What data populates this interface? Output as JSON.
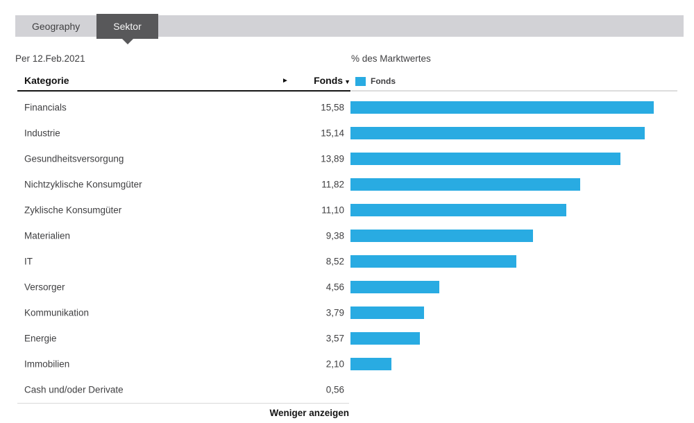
{
  "tabs": {
    "items": [
      {
        "label": "Geography",
        "active": false
      },
      {
        "label": "Sektor",
        "active": true
      }
    ]
  },
  "meta": {
    "as_of": "Per 12.Feb.2021",
    "chart_axis_label": "% des Marktwertes"
  },
  "table": {
    "category_header": "Kategorie",
    "value_header": "Fonds",
    "sort_indicator": "▼",
    "expand_arrow": "►",
    "footer_link": "Weniger anzeigen"
  },
  "legend": {
    "label": "Fonds",
    "color": "#29abe2"
  },
  "chart_data": {
    "type": "bar",
    "orientation": "horizontal",
    "title": "% des Marktwertes",
    "legend_entries": [
      "Fonds"
    ],
    "legend_position": "top",
    "grid": false,
    "categories": [
      "Financials",
      "Industrie",
      "Gesundheitsversorgung",
      "Nichtzyklische Konsumgüter",
      "Zyklische Konsumgüter",
      "Materialien",
      "IT",
      "Versorger",
      "Kommunikation",
      "Energie",
      "Immobilien",
      "Cash und/oder Derivate"
    ],
    "values": [
      15.58,
      15.14,
      13.89,
      11.82,
      11.1,
      9.38,
      8.52,
      4.56,
      3.79,
      3.57,
      2.1,
      0.56
    ],
    "value_labels": [
      "15,58",
      "15,14",
      "13,89",
      "11,82",
      "11,10",
      "9,38",
      "8,52",
      "4,56",
      "3,79",
      "3,57",
      "2,10",
      "0,56"
    ],
    "bars_shown": [
      true,
      true,
      true,
      true,
      true,
      true,
      true,
      true,
      true,
      true,
      true,
      false
    ],
    "xlim": [
      0,
      16.8
    ],
    "bar_color": "#29abe2"
  }
}
